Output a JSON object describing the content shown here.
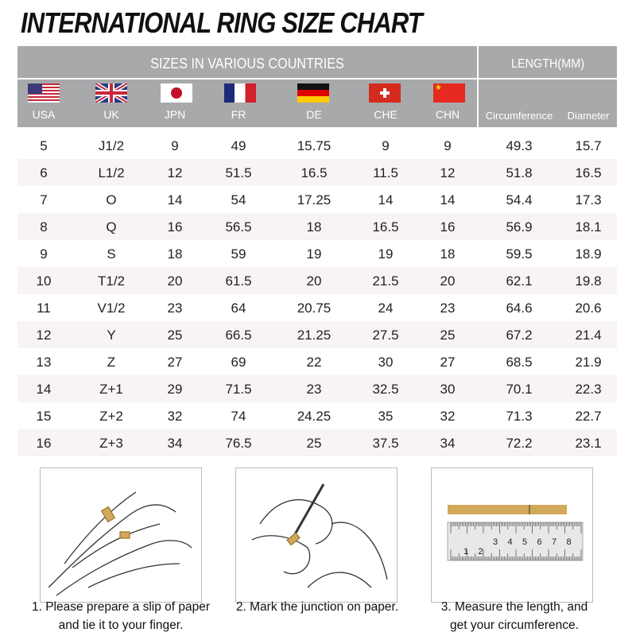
{
  "title": "INTERNATIONAL RING SIZE CHART",
  "header": {
    "sizes_label": "SIZES IN VARIOUS COUNTRIES",
    "length_label": "LENGTH(MM)",
    "columns": [
      "USA",
      "UK",
      "JPN",
      "FR",
      "DE",
      "CHE",
      "CHN",
      "Circumference",
      "Diameter"
    ],
    "flags": [
      "usa-flag",
      "uk-flag",
      "japan-flag",
      "france-flag",
      "germany-flag",
      "switzerland-flag",
      "china-flag"
    ]
  },
  "rows": [
    [
      "5",
      "J1/2",
      "9",
      "49",
      "15.75",
      "9",
      "9",
      "49.3",
      "15.7"
    ],
    [
      "6",
      "L1/2",
      "12",
      "51.5",
      "16.5",
      "11.5",
      "12",
      "51.8",
      "16.5"
    ],
    [
      "7",
      "O",
      "14",
      "54",
      "17.25",
      "14",
      "14",
      "54.4",
      "17.3"
    ],
    [
      "8",
      "Q",
      "16",
      "56.5",
      "18",
      "16.5",
      "16",
      "56.9",
      "18.1"
    ],
    [
      "9",
      "S",
      "18",
      "59",
      "19",
      "19",
      "18",
      "59.5",
      "18.9"
    ],
    [
      "10",
      "T1/2",
      "20",
      "61.5",
      "20",
      "21.5",
      "20",
      "62.1",
      "19.8"
    ],
    [
      "11",
      "V1/2",
      "23",
      "64",
      "20.75",
      "24",
      "23",
      "64.6",
      "20.6"
    ],
    [
      "12",
      "Y",
      "25",
      "66.5",
      "21.25",
      "27.5",
      "25",
      "67.2",
      "21.4"
    ],
    [
      "13",
      "Z",
      "27",
      "69",
      "22",
      "30",
      "27",
      "68.5",
      "21.9"
    ],
    [
      "14",
      "Z+1",
      "29",
      "71.5",
      "23",
      "32.5",
      "30",
      "70.1",
      "22.3"
    ],
    [
      "15",
      "Z+2",
      "32",
      "74",
      "24.25",
      "35",
      "32",
      "71.3",
      "22.7"
    ],
    [
      "16",
      "Z+3",
      "34",
      "76.5",
      "25",
      "37.5",
      "34",
      "72.2",
      "23.1"
    ]
  ],
  "steps": [
    {
      "line1": "1. Please prepare a slip of paper",
      "line2": "and tie it to your finger."
    },
    {
      "line1": "2. Mark the junction on paper.",
      "line2": ""
    },
    {
      "line1": "3. Measure the length, and",
      "line2": "get your circumference."
    }
  ],
  "ruler_numbers": [
    "1",
    "2",
    "3",
    "4",
    "5",
    "6",
    "7",
    "8"
  ],
  "colors": {
    "header": "#a8a9ab",
    "alt_row": "#f8f4f3",
    "paper": "#d2a85a"
  }
}
